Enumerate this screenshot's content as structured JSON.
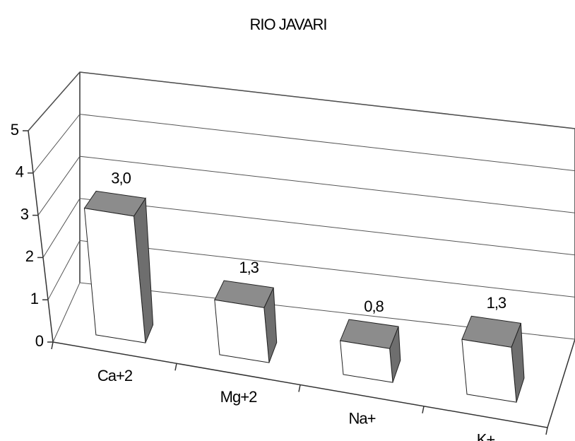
{
  "chart_data": {
    "type": "bar3d",
    "title": "RIO JAVARI",
    "categories": [
      "Ca+2",
      "Mg+2",
      "Na+",
      "K+"
    ],
    "values": [
      3.0,
      1.3,
      0.8,
      1.3
    ],
    "value_labels": [
      "3,0",
      "1,3",
      "0,8",
      "1,3"
    ],
    "color": "#ffffff",
    "ylim": [
      0,
      5
    ],
    "yticks": [
      0,
      1,
      2,
      3,
      4,
      5
    ],
    "grid": true
  }
}
